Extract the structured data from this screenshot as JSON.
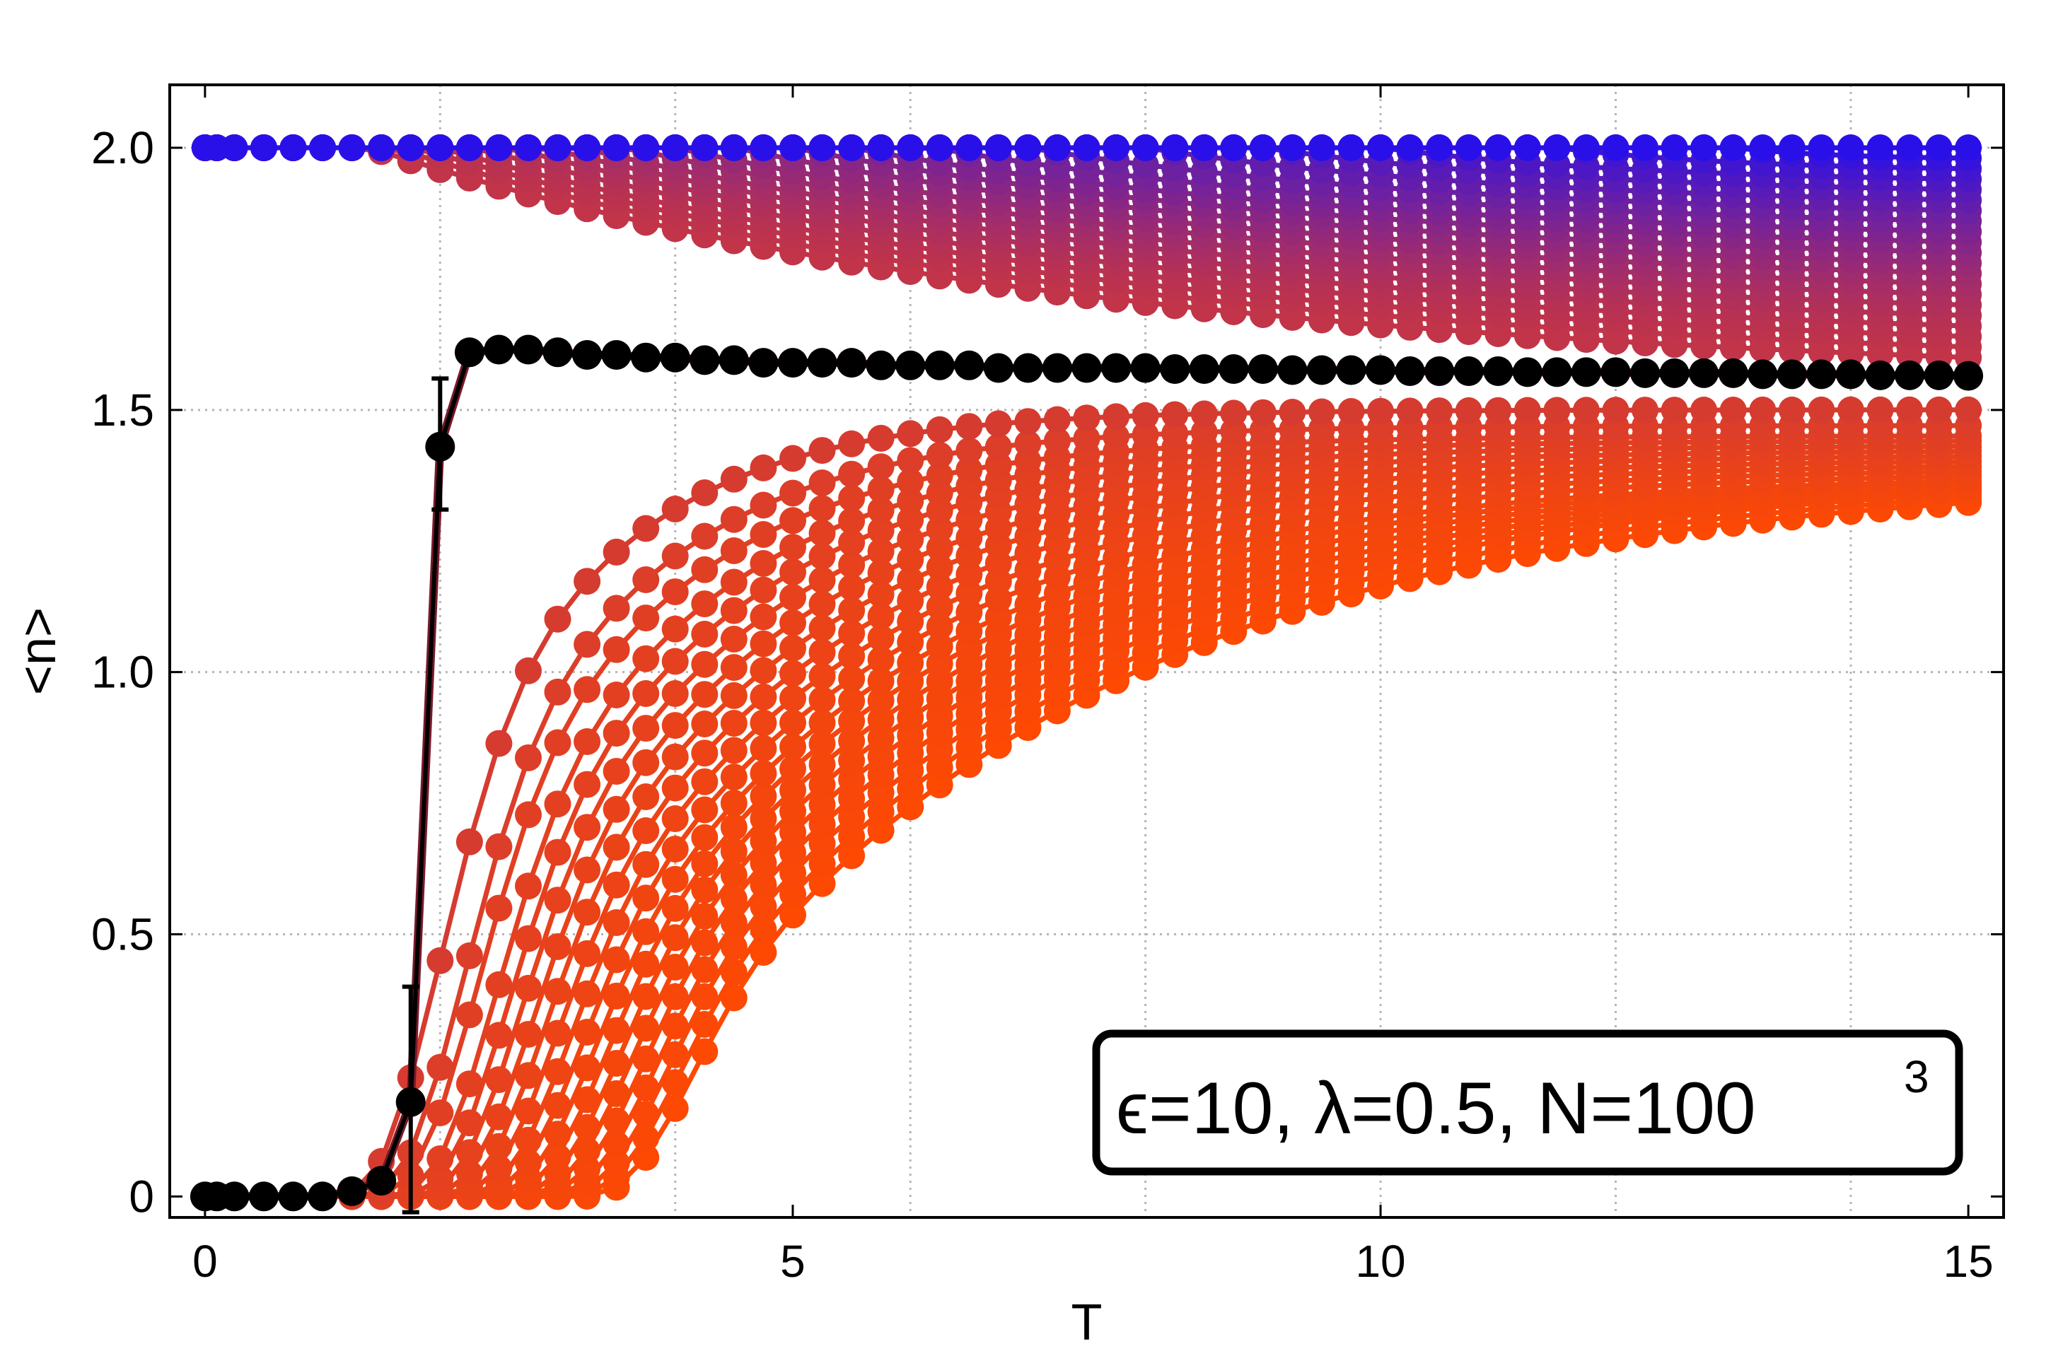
{
  "chart_data": {
    "type": "scatter",
    "title": "",
    "xlabel": "T",
    "ylabel": "<n>",
    "xlim": [
      -0.3,
      15.3
    ],
    "ylim": [
      -0.04,
      2.12
    ],
    "x_ticks": [
      0,
      5,
      10,
      15
    ],
    "x_tick_labels": [
      "0",
      "5",
      "10",
      "15"
    ],
    "y_ticks": [
      0,
      0.5,
      1.0,
      1.5,
      2.0
    ],
    "y_tick_labels": [
      "0",
      "0.5",
      "1.0",
      "1.5",
      "2.0"
    ],
    "x_grid": [
      2,
      4,
      6,
      8,
      10,
      12,
      14
    ],
    "y_grid": [
      0.5,
      1.0,
      1.5,
      2.0
    ],
    "grid": true,
    "legend": {
      "placement": "bottom-right",
      "text": "ϵ=10, λ=0.5, N=100",
      "superscript": "3"
    },
    "T_values": [
      0.0,
      0.1,
      0.25,
      0.5,
      0.75,
      1.0,
      1.25,
      1.5,
      1.75,
      2.0,
      2.25,
      2.5,
      2.75,
      3.0,
      3.25,
      3.5,
      3.75,
      4.0,
      4.25,
      4.5,
      4.75,
      5.0,
      5.25,
      5.5,
      5.75,
      6.0,
      6.25,
      6.5,
      6.75,
      7.0,
      7.25,
      7.5,
      7.75,
      8.0,
      8.25,
      8.5,
      8.75,
      9.0,
      9.25,
      9.5,
      9.75,
      10.0,
      10.25,
      10.5,
      10.75,
      11.0,
      11.25,
      11.5,
      11.75,
      12.0,
      12.25,
      12.5,
      12.75,
      13.0,
      13.25,
      13.5,
      13.75,
      14.0,
      14.25,
      14.5,
      14.75,
      15.0
    ],
    "family_colors": {
      "top": "#2a10e8",
      "middle": "#c23448",
      "bottom": "#ff4a00"
    },
    "family": {
      "upper_end_values": [
        2.0,
        1.98,
        1.96,
        1.94,
        1.92,
        1.9,
        1.88,
        1.86,
        1.84,
        1.82,
        1.8,
        1.78,
        1.76,
        1.74,
        1.72,
        1.7,
        1.68,
        1.66,
        1.64,
        1.62,
        1.6
      ],
      "upper_onset_T": [
        15.0,
        13.0,
        11.5,
        10.0,
        9.0,
        8.0,
        7.0,
        6.2,
        5.5,
        5.0,
        4.5,
        4.0,
        3.6,
        3.2,
        2.9,
        2.6,
        2.3,
        2.0,
        1.8,
        1.6,
        1.4
      ],
      "lower_onset_T": [
        1.9,
        2.1,
        2.2,
        2.35,
        2.45,
        2.55,
        2.65,
        2.75,
        2.85,
        2.95,
        3.05,
        3.15,
        3.25,
        3.35,
        3.45,
        3.55,
        3.65,
        3.75,
        3.85,
        3.95
      ],
      "lower_end_values": [
        1.5,
        1.47,
        1.45,
        1.44,
        1.43,
        1.42,
        1.41,
        1.4,
        1.39,
        1.38,
        1.37,
        1.36,
        1.355,
        1.35,
        1.345,
        1.34,
        1.335,
        1.33,
        1.32,
        1.31
      ]
    },
    "series": [
      {
        "name": "black",
        "color": "#000000",
        "points": [
          {
            "T": 0.0,
            "n": 0.0
          },
          {
            "T": 0.1,
            "n": 0.0
          },
          {
            "T": 0.25,
            "n": 0.0
          },
          {
            "T": 0.5,
            "n": 0.0
          },
          {
            "T": 0.75,
            "n": 0.0
          },
          {
            "T": 1.0,
            "n": 0.0
          },
          {
            "T": 1.25,
            "n": 0.01
          },
          {
            "T": 1.5,
            "n": 0.03
          },
          {
            "T": 1.75,
            "n": 0.18
          },
          {
            "T": 2.0,
            "n": 1.43
          },
          {
            "T": 2.25,
            "n": 1.61
          },
          {
            "T": 2.5,
            "n": 1.615
          },
          {
            "T": 2.75,
            "n": 1.615
          },
          {
            "T": 3.0,
            "n": 1.61
          },
          {
            "T": 3.25,
            "n": 1.605
          },
          {
            "T": 3.5,
            "n": 1.605
          },
          {
            "T": 3.75,
            "n": 1.6
          },
          {
            "T": 4.0,
            "n": 1.6
          },
          {
            "T": 4.25,
            "n": 1.595
          },
          {
            "T": 4.5,
            "n": 1.595
          },
          {
            "T": 4.75,
            "n": 1.59
          },
          {
            "T": 5.0,
            "n": 1.59
          },
          {
            "T": 5.25,
            "n": 1.59
          },
          {
            "T": 5.5,
            "n": 1.59
          },
          {
            "T": 5.75,
            "n": 1.585
          },
          {
            "T": 6.0,
            "n": 1.585
          },
          {
            "T": 6.25,
            "n": 1.585
          },
          {
            "T": 6.5,
            "n": 1.585
          },
          {
            "T": 6.75,
            "n": 1.58
          },
          {
            "T": 7.0,
            "n": 1.58
          },
          {
            "T": 7.25,
            "n": 1.58
          },
          {
            "T": 7.5,
            "n": 1.58
          },
          {
            "T": 7.75,
            "n": 1.58
          },
          {
            "T": 8.0,
            "n": 1.58
          },
          {
            "T": 8.25,
            "n": 1.578
          },
          {
            "T": 8.5,
            "n": 1.578
          },
          {
            "T": 8.75,
            "n": 1.578
          },
          {
            "T": 9.0,
            "n": 1.578
          },
          {
            "T": 9.25,
            "n": 1.576
          },
          {
            "T": 9.5,
            "n": 1.576
          },
          {
            "T": 9.75,
            "n": 1.576
          },
          {
            "T": 10.0,
            "n": 1.576
          },
          {
            "T": 10.25,
            "n": 1.574
          },
          {
            "T": 10.5,
            "n": 1.574
          },
          {
            "T": 10.75,
            "n": 1.574
          },
          {
            "T": 11.0,
            "n": 1.574
          },
          {
            "T": 11.25,
            "n": 1.572
          },
          {
            "T": 11.5,
            "n": 1.572
          },
          {
            "T": 11.75,
            "n": 1.572
          },
          {
            "T": 12.0,
            "n": 1.572
          },
          {
            "T": 12.25,
            "n": 1.57
          },
          {
            "T": 12.5,
            "n": 1.57
          },
          {
            "T": 12.75,
            "n": 1.57
          },
          {
            "T": 13.0,
            "n": 1.57
          },
          {
            "T": 13.25,
            "n": 1.568
          },
          {
            "T": 13.5,
            "n": 1.568
          },
          {
            "T": 13.75,
            "n": 1.568
          },
          {
            "T": 14.0,
            "n": 1.568
          },
          {
            "T": 14.25,
            "n": 1.566
          },
          {
            "T": 14.5,
            "n": 1.566
          },
          {
            "T": 14.75,
            "n": 1.566
          },
          {
            "T": 15.0,
            "n": 1.565
          }
        ],
        "error_bars": [
          {
            "T": 1.75,
            "low": -0.03,
            "high": 0.4
          },
          {
            "T": 2.0,
            "low": 1.31,
            "high": 1.56
          }
        ]
      }
    ]
  }
}
